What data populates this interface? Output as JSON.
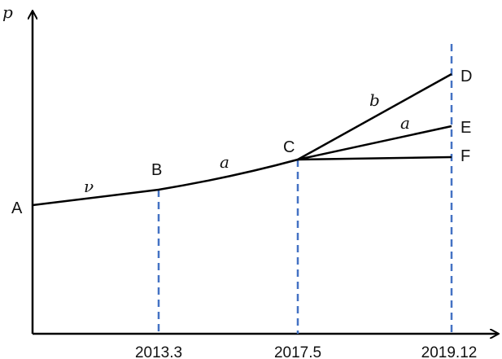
{
  "axes": {
    "y_label": "p",
    "x_ticks": [
      "2013.3",
      "2017.5",
      "2019.12"
    ]
  },
  "points": {
    "A": "A",
    "B": "B",
    "C": "C",
    "D": "D",
    "E": "E",
    "F": "F"
  },
  "segment_labels": {
    "ab": "ν",
    "bc": "a",
    "cd": "b",
    "ce": "a"
  },
  "colors": {
    "line": "#000000",
    "dashed": "#4472C4"
  }
}
